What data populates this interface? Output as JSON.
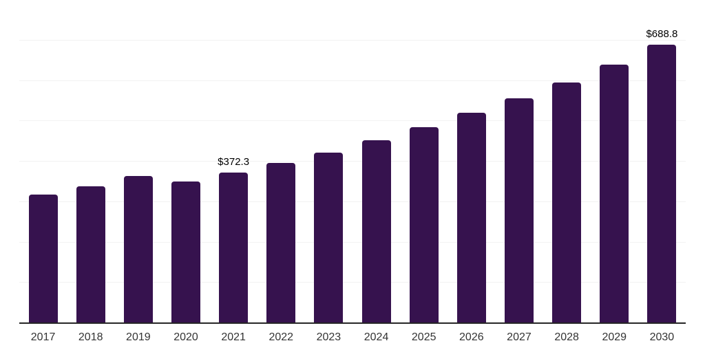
{
  "chart_data": {
    "type": "bar",
    "title": "",
    "xlabel": "",
    "ylabel": "",
    "categories": [
      "2017",
      "2018",
      "2019",
      "2020",
      "2021",
      "2022",
      "2023",
      "2024",
      "2025",
      "2026",
      "2027",
      "2028",
      "2029",
      "2030"
    ],
    "values": [
      318.1,
      339.2,
      363.5,
      350.9,
      372.3,
      396.8,
      422.4,
      452.7,
      485.0,
      520.7,
      556.9,
      595.8,
      639.9,
      688.8
    ],
    "data_labels": [
      {
        "category": "2021",
        "text": "$372.3"
      },
      {
        "category": "2030",
        "text": "$688.8"
      }
    ],
    "ylim": [
      0,
      800
    ],
    "grid_step": 100,
    "grid": true,
    "legend_position": "none"
  },
  "colors": {
    "bar": "#36124E",
    "grid": "#F2F2F2",
    "axis": "#262626",
    "tick_label": "#333333",
    "data_label": "#000000",
    "background": "#FFFFFF"
  }
}
